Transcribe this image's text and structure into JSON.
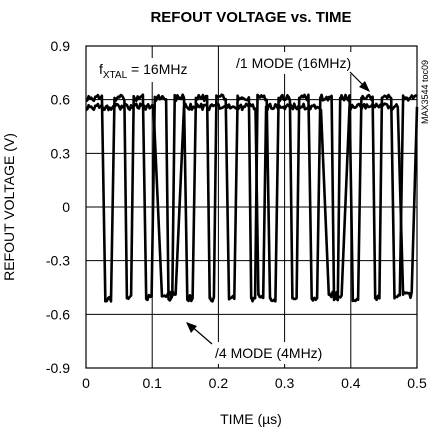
{
  "chart_data": {
    "type": "line",
    "title": "REFOUT VOLTAGE vs. TIME",
    "xlabel": "TIME (µs)",
    "ylabel": "REFOUT VOLTAGE (V)",
    "xlim": [
      0,
      0.5
    ],
    "ylim": [
      -0.9,
      0.9
    ],
    "x_ticks": [
      "0",
      "0.1",
      "0.2",
      "0.3",
      "0.4",
      "0.5"
    ],
    "y_ticks": [
      "0.9",
      "0.6",
      "0.3",
      "0",
      "-0.3",
      "-0.6",
      "-0.9"
    ],
    "grid": true,
    "annotations": {
      "fxtal": "f",
      "fxtal_sub": "XTAL",
      "fxtal_value": " = 16MHz",
      "mode1": "/1 MODE (16MHz)",
      "mode4": "/4 MODE (4MHz)",
      "part_tag": "MAX3544 toc09"
    },
    "series": [
      {
        "name": "/1 MODE (16MHz)",
        "period": 0.0625,
        "high": 0.61,
        "low": -0.51,
        "edges": [
          [
            0.024,
            0.043
          ],
          [
            0.058,
            0.072
          ],
          [
            0.086,
            0.104
          ],
          [
            0.121,
            0.134
          ],
          [
            0.148,
            0.166
          ],
          [
            0.183,
            0.197
          ],
          [
            0.211,
            0.229
          ],
          [
            0.246,
            0.259
          ],
          [
            0.273,
            0.291
          ],
          [
            0.308,
            0.322
          ],
          [
            0.336,
            0.354
          ],
          [
            0.371,
            0.384
          ],
          [
            0.398,
            0.416
          ],
          [
            0.433,
            0.447
          ],
          [
            0.461,
            0.479
          ]
        ]
      },
      {
        "name": "/4 MODE (4MHz)",
        "period": 0.25,
        "high": 0.56,
        "low": -0.49,
        "edges": [
          [
            0.102,
            0.148
          ],
          [
            0.256,
            0.272
          ],
          [
            0.355,
            0.398
          ],
          [
            0.471,
            0.5
          ]
        ]
      }
    ]
  }
}
